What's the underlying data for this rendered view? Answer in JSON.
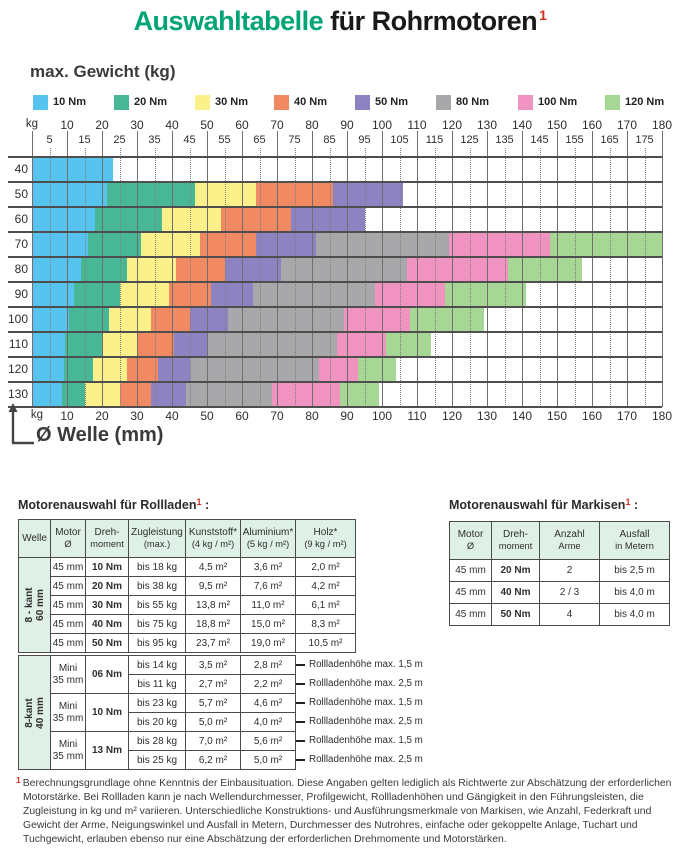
{
  "title": {
    "green": "Auswahltabelle",
    "dark": " für Rohrmotoren",
    "sup": "1"
  },
  "chart_data": {
    "type": "range-grid",
    "heading": "max. Gewicht (kg)",
    "x_axis_label": "Ø Welle (mm)",
    "x_unit": "kg",
    "x_range": [
      0,
      180
    ],
    "grid": true,
    "legend_position": "top",
    "legend": [
      {
        "label": "10 Nm",
        "color": "#56c4ee"
      },
      {
        "label": "20 Nm",
        "color": "#47b795"
      },
      {
        "label": "30 Nm",
        "color": "#fbf089"
      },
      {
        "label": "40 Nm",
        "color": "#f18a63"
      },
      {
        "label": "50 Nm",
        "color": "#8d82c2"
      },
      {
        "label": "80 Nm",
        "color": "#a8a8aa"
      },
      {
        "label": "100 Nm",
        "color": "#f193c1"
      },
      {
        "label": "120 Nm",
        "color": "#a6d795"
      }
    ],
    "x_major": [
      10,
      20,
      30,
      40,
      50,
      60,
      70,
      80,
      90,
      100,
      110,
      120,
      130,
      140,
      150,
      160,
      170,
      180
    ],
    "x_minor": [
      5,
      15,
      25,
      35,
      45,
      55,
      65,
      75,
      85,
      95,
      105,
      115,
      125,
      135,
      145,
      155,
      165,
      175
    ],
    "y_rows": [
      40,
      50,
      60,
      70,
      80,
      90,
      100,
      110,
      120,
      130
    ],
    "rows": [
      {
        "kg": 40,
        "segments": [
          {
            "nm": "10 Nm",
            "from": 0,
            "to": 23
          }
        ]
      },
      {
        "kg": 50,
        "segments": [
          {
            "nm": "10 Nm",
            "from": 0,
            "to": 21.5
          },
          {
            "nm": "20 Nm",
            "from": 21.5,
            "to": 46.5
          },
          {
            "nm": "30 Nm",
            "from": 46.5,
            "to": 64
          },
          {
            "nm": "40 Nm",
            "from": 64,
            "to": 86
          },
          {
            "nm": "50 Nm",
            "from": 86,
            "to": 106
          }
        ]
      },
      {
        "kg": 60,
        "segments": [
          {
            "nm": "10 Nm",
            "from": 0,
            "to": 18
          },
          {
            "nm": "20 Nm",
            "from": 18,
            "to": 37
          },
          {
            "nm": "30 Nm",
            "from": 37,
            "to": 54
          },
          {
            "nm": "40 Nm",
            "from": 54,
            "to": 74
          },
          {
            "nm": "50 Nm",
            "from": 74,
            "to": 95
          }
        ]
      },
      {
        "kg": 70,
        "segments": [
          {
            "nm": "10 Nm",
            "from": 0,
            "to": 16
          },
          {
            "nm": "20 Nm",
            "from": 16,
            "to": 31
          },
          {
            "nm": "30 Nm",
            "from": 31,
            "to": 48
          },
          {
            "nm": "40 Nm",
            "from": 48,
            "to": 64
          },
          {
            "nm": "50 Nm",
            "from": 64,
            "to": 81
          },
          {
            "nm": "80 Nm",
            "from": 81,
            "to": 119
          },
          {
            "nm": "100 Nm",
            "from": 119,
            "to": 148
          },
          {
            "nm": "120 Nm",
            "from": 148,
            "to": 180
          }
        ]
      },
      {
        "kg": 80,
        "segments": [
          {
            "nm": "10 Nm",
            "from": 0,
            "to": 14
          },
          {
            "nm": "20 Nm",
            "from": 14,
            "to": 27
          },
          {
            "nm": "30 Nm",
            "from": 27,
            "to": 41
          },
          {
            "nm": "40 Nm",
            "from": 41,
            "to": 55
          },
          {
            "nm": "50 Nm",
            "from": 55,
            "to": 71
          },
          {
            "nm": "80 Nm",
            "from": 71,
            "to": 107
          },
          {
            "nm": "100 Nm",
            "from": 107,
            "to": 136
          },
          {
            "nm": "120 Nm",
            "from": 136,
            "to": 157
          }
        ]
      },
      {
        "kg": 90,
        "segments": [
          {
            "nm": "10 Nm",
            "from": 0,
            "to": 12
          },
          {
            "nm": "20 Nm",
            "from": 12,
            "to": 25
          },
          {
            "nm": "30 Nm",
            "from": 25,
            "to": 39
          },
          {
            "nm": "40 Nm",
            "from": 39,
            "to": 51
          },
          {
            "nm": "50 Nm",
            "from": 51,
            "to": 63
          },
          {
            "nm": "80 Nm",
            "from": 63,
            "to": 98
          },
          {
            "nm": "100 Nm",
            "from": 98,
            "to": 118
          },
          {
            "nm": "120 Nm",
            "from": 118,
            "to": 141
          }
        ]
      },
      {
        "kg": 100,
        "segments": [
          {
            "nm": "10 Nm",
            "from": 0,
            "to": 10.5
          },
          {
            "nm": "20 Nm",
            "from": 10.5,
            "to": 22
          },
          {
            "nm": "30 Nm",
            "from": 22,
            "to": 34
          },
          {
            "nm": "40 Nm",
            "from": 34,
            "to": 45
          },
          {
            "nm": "50 Nm",
            "from": 45,
            "to": 56
          },
          {
            "nm": "80 Nm",
            "from": 56,
            "to": 89
          },
          {
            "nm": "100 Nm",
            "from": 89,
            "to": 108
          },
          {
            "nm": "120 Nm",
            "from": 108,
            "to": 129
          }
        ]
      },
      {
        "kg": 110,
        "segments": [
          {
            "nm": "10 Nm",
            "from": 0,
            "to": 9.5
          },
          {
            "nm": "20 Nm",
            "from": 9.5,
            "to": 20
          },
          {
            "nm": "30 Nm",
            "from": 20,
            "to": 30
          },
          {
            "nm": "40 Nm",
            "from": 30,
            "to": 40.5
          },
          {
            "nm": "50 Nm",
            "from": 40.5,
            "to": 50
          },
          {
            "nm": "80 Nm",
            "from": 50,
            "to": 87
          },
          {
            "nm": "100 Nm",
            "from": 87,
            "to": 101
          },
          {
            "nm": "120 Nm",
            "from": 101,
            "to": 114
          }
        ]
      },
      {
        "kg": 120,
        "segments": [
          {
            "nm": "10 Nm",
            "from": 0,
            "to": 9
          },
          {
            "nm": "20 Nm",
            "from": 9,
            "to": 17.5
          },
          {
            "nm": "30 Nm",
            "from": 17.5,
            "to": 27
          },
          {
            "nm": "40 Nm",
            "from": 27,
            "to": 36
          },
          {
            "nm": "50 Nm",
            "from": 36,
            "to": 45
          },
          {
            "nm": "80 Nm",
            "from": 45,
            "to": 82
          },
          {
            "nm": "100 Nm",
            "from": 82,
            "to": 93
          },
          {
            "nm": "120 Nm",
            "from": 93,
            "to": 104
          }
        ]
      },
      {
        "kg": 130,
        "segments": [
          {
            "nm": "10 Nm",
            "from": 0,
            "to": 8.5
          },
          {
            "nm": "20 Nm",
            "from": 8.5,
            "to": 15
          },
          {
            "nm": "30 Nm",
            "from": 15,
            "to": 25
          },
          {
            "nm": "40 Nm",
            "from": 25,
            "to": 34
          },
          {
            "nm": "50 Nm",
            "from": 34,
            "to": 44
          },
          {
            "nm": "80 Nm",
            "from": 44,
            "to": 68.5
          },
          {
            "nm": "100 Nm",
            "from": 68.5,
            "to": 88
          },
          {
            "nm": "120 Nm",
            "from": 88,
            "to": 99
          }
        ]
      }
    ]
  },
  "tables": {
    "rollladen": {
      "title": "Motorenauswahl für Rollladen",
      "sup": "1",
      "suffix": " :",
      "headers": [
        [
          "Welle"
        ],
        [
          "Motor",
          "Ø"
        ],
        [
          "Dreh-",
          "moment"
        ],
        [
          "Zugleistung",
          "(max.)"
        ],
        [
          "Kunststoff*",
          "(4 kg / m²)"
        ],
        [
          "Aluminium*",
          "(5 kg / m²)"
        ],
        [
          "Holz*",
          "(9 kg / m²)"
        ]
      ],
      "section1": {
        "welle_lines": [
          "8 - kant",
          "60 mm"
        ],
        "rows": [
          [
            "45 mm",
            "10 Nm",
            "bis 18 kg",
            "4,5 m²",
            "3,6 m²",
            "2,0 m²"
          ],
          [
            "45 mm",
            "20 Nm",
            "bis 38 kg",
            "9,5 m²",
            "7,6 m²",
            "4,2 m²"
          ],
          [
            "45 mm",
            "30 Nm",
            "bis 55 kg",
            "13,8 m²",
            "11,0 m²",
            "6,1 m²"
          ],
          [
            "45 mm",
            "40 Nm",
            "bis 75 kg",
            "18,8 m²",
            "15,0 m²",
            "8,3 m²"
          ],
          [
            "45 mm",
            "50 Nm",
            "bis 95 kg",
            "23,7 m²",
            "19,0 m²",
            "10,5 m²"
          ]
        ]
      },
      "section2": {
        "welle_lines": [
          "8-kant",
          "40 mm"
        ],
        "groups": [
          {
            "motor_lines": [
              "Mini",
              "35 mm"
            ],
            "nm": "06 Nm",
            "rows": [
              [
                "bis 14 kg",
                "3,5 m²",
                "2,8 m²",
                "Rollladenhöhe max. 1,5 m"
              ],
              [
                "bis 11 kg",
                "2,7 m²",
                "2,2 m²",
                "Rollladenhöhe max. 2,5 m"
              ]
            ]
          },
          {
            "motor_lines": [
              "Mini",
              "35 mm"
            ],
            "nm": "10 Nm",
            "rows": [
              [
                "bis 23 kg",
                "5,7 m²",
                "4,6 m²",
                "Rollladenhöhe max. 1,5 m"
              ],
              [
                "bis 20 kg",
                "5,0 m²",
                "4,0 m²",
                "Rollladenhöhe max. 2,5 m"
              ]
            ]
          },
          {
            "motor_lines": [
              "Mini",
              "35 mm"
            ],
            "nm": "13 Nm",
            "rows": [
              [
                "bis 28 kg",
                "7,0 m²",
                "5,6 m²",
                "Rollladenhöhe max. 1,5 m"
              ],
              [
                "bis 25 kg",
                "6,2 m²",
                "5,0 m²",
                "Rollladenhöhe max. 2,5 m"
              ]
            ]
          }
        ]
      }
    },
    "markisen": {
      "title": "Motorenauswahl für Markisen",
      "sup": "1",
      "suffix": " :",
      "headers": [
        [
          "Motor",
          "Ø"
        ],
        [
          "Dreh-",
          "moment"
        ],
        [
          "Anzahl",
          "Arme"
        ],
        [
          "Ausfall",
          "in Metern"
        ]
      ],
      "rows": [
        [
          "45 mm",
          "20 Nm",
          "2",
          "bis 2,5 m"
        ],
        [
          "45 mm",
          "40 Nm",
          "2 / 3",
          "bis 4,0 m"
        ],
        [
          "45 mm",
          "50 Nm",
          "4",
          "bis 4,0 m"
        ]
      ]
    }
  },
  "footnote": {
    "sup": "1",
    "text": "Berechnungsgrundlage ohne Kenntnis der Einbausituation. Diese Angaben gelten lediglich als Richtwerte zur Abschätzung der erforderlichen Motorstärke. Bei Rollladen kann je nach Wellendurchmesser, Profilgewicht, Rollladenhöhen und Gängigkeit in den Führungsleisten, die Zugleistung in kg und m² variieren. Unterschiedliche Konstruktions- und Ausführungsmerkmale von Markisen, wie Anzahl, Federkraft und Gewicht der Arme, Neigungswinkel und Ausfall in Metern, Durchmesser des Nutrohres, einfache oder gekoppelte Anlage, Tuchart und Tuchgewicht, erlauben ebenso nur eine Abschätzung der erforderlichen Drehmomente und Motorstärken."
  }
}
